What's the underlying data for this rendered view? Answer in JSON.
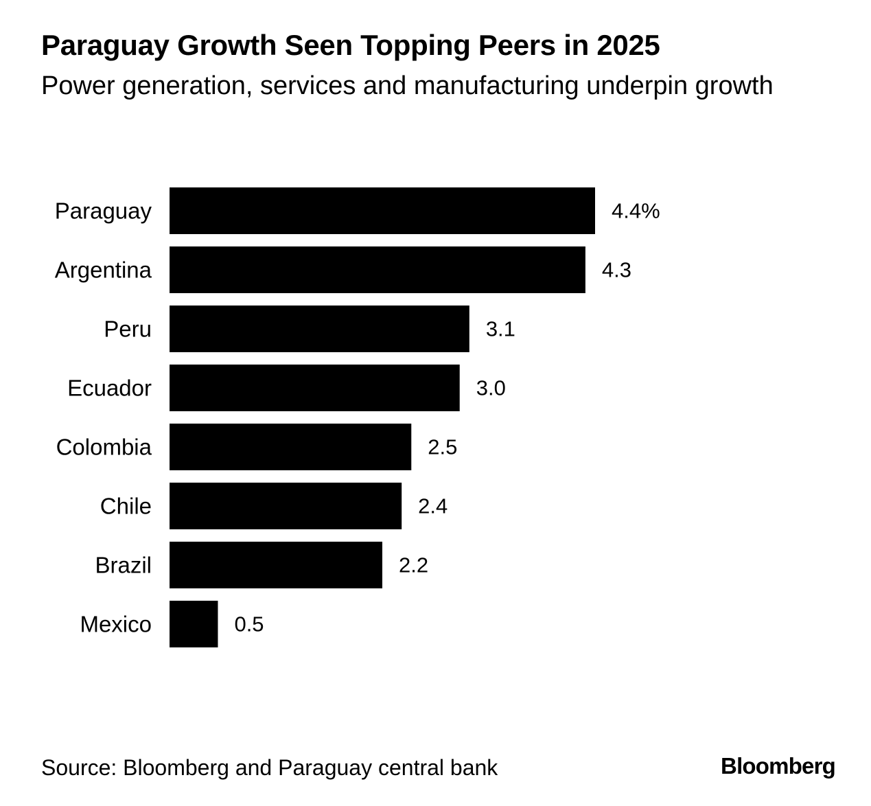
{
  "colors": {
    "bar": "#000000",
    "text": "#000000",
    "background": "#ffffff"
  },
  "header": {
    "title": "Paraguay Growth Seen Topping Peers in 2025",
    "subtitle": "Power generation, services and manufacturing underpin growth"
  },
  "footer": {
    "source": "Source: Bloomberg and Paraguay central bank",
    "brand": "Bloomberg"
  },
  "chart_data": {
    "type": "bar",
    "orientation": "horizontal",
    "categories": [
      "Paraguay",
      "Argentina",
      "Peru",
      "Ecuador",
      "Colombia",
      "Chile",
      "Brazil",
      "Mexico"
    ],
    "values": [
      4.4,
      4.3,
      3.1,
      3.0,
      2.5,
      2.4,
      2.2,
      0.5
    ],
    "value_labels": [
      "4.4%",
      "4.3",
      "3.1",
      "3.0",
      "2.5",
      "2.4",
      "2.2",
      "0.5"
    ],
    "title": "Paraguay Growth Seen Topping Peers in 2025",
    "subtitle": "Power generation, services and manufacturing underpin growth",
    "xlim": [
      0,
      4.4
    ],
    "grid": false,
    "legend": "none"
  }
}
